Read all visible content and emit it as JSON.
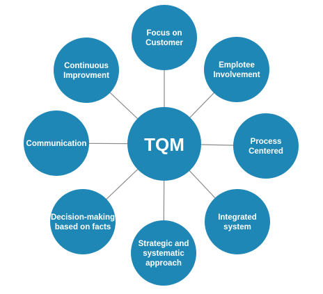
{
  "center": {
    "label": "TQM"
  },
  "nodes": [
    {
      "id": "focus-on-customer",
      "lines": [
        "Focus on",
        "Customer"
      ]
    },
    {
      "id": "emplotee-involvement",
      "lines": [
        "Emplotee",
        "Involvement"
      ]
    },
    {
      "id": "process-centered",
      "lines": [
        "Process",
        "Centered"
      ]
    },
    {
      "id": "integrated-system",
      "lines": [
        "Integrated",
        "system"
      ]
    },
    {
      "id": "strategic-and-systematic-approach",
      "lines": [
        "Strategic and",
        "systematic",
        "approach"
      ]
    },
    {
      "id": "decision-making-based-on-facts",
      "lines": [
        "Decision-making",
        "based on facts"
      ]
    },
    {
      "id": "communication",
      "lines": [
        "Communication"
      ]
    },
    {
      "id": "continuous-improvment",
      "lines": [
        "Continuous",
        "Improvment"
      ]
    }
  ],
  "colors": {
    "circle": "#1f87b5",
    "text": "#ffffff",
    "connector": "#8a8a8a"
  }
}
